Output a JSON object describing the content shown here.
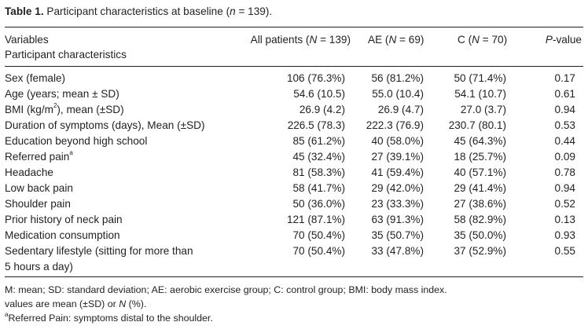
{
  "caption": {
    "label": "Table 1.",
    "text_before_n": "Participant characteristics at baseline (",
    "n_symbol": "n",
    "text_after_n": " = 139)."
  },
  "headers": {
    "variables": "Variables",
    "participant_characteristics": "Participant characteristics",
    "all_patients": {
      "prefix": "All patients (",
      "n": "N",
      "suffix": " = 139)"
    },
    "ae": {
      "prefix": "AE (",
      "n": "N",
      "suffix": " = 69)"
    },
    "c": {
      "prefix": "C (",
      "n": "N",
      "suffix": " = 70)"
    },
    "p_value": {
      "p": "P",
      "suffix": "-value"
    }
  },
  "rows": [
    {
      "variable": "Sex (female)",
      "all": "106 (76.3%)",
      "ae": "56 (81.2%)",
      "c": "50 (71.4%)",
      "p": "0.17"
    },
    {
      "variable": "Age (years; mean ± SD)",
      "all": "54.6 (10.5)",
      "ae": "55.0 (10.4)",
      "c": "54.1 (10.7)",
      "p": "0.61"
    },
    {
      "variable_pre": "BMI (kg/m",
      "variable_sup": "2",
      "variable_post": "), mean (±SD)",
      "all": "26.9 (4.2)",
      "ae": "26.9 (4.7)",
      "c": "27.0 (3.7)",
      "p": "0.94"
    },
    {
      "variable": "Duration of symptoms (days), Mean (±SD)",
      "all": "226.5 (78.3)",
      "ae": "222.3 (76.9)",
      "c": "230.7 (80.1)",
      "p": "0.53"
    },
    {
      "variable": "Education beyond high school",
      "all": "85 (61.2%)",
      "ae": "40 (58.0%)",
      "c": "45 (64.3%)",
      "p": "0.44"
    },
    {
      "variable_pre": "Referred pain",
      "variable_sup": "a",
      "variable_post": "",
      "all": "45 (32.4%)",
      "ae": "27 (39.1%)",
      "c": "18 (25.7%)",
      "p": "0.09"
    },
    {
      "variable": "Headache",
      "all": "81 (58.3%)",
      "ae": "41 (59.4%)",
      "c": "40 (57.1%)",
      "p": "0.78"
    },
    {
      "variable": "Low back pain",
      "all": "58 (41.7%)",
      "ae": "29 (42.0%)",
      "c": "29 (41.4%)",
      "p": "0.94"
    },
    {
      "variable": "Shoulder pain",
      "all": "50 (36.0%)",
      "ae": "23 (33.3%)",
      "c": "27 (38.6%)",
      "p": "0.52"
    },
    {
      "variable": "Prior history of neck pain",
      "all": "121 (87.1%)",
      "ae": "63 (91.3%)",
      "c": "58 (82.9%)",
      "p": "0.13"
    },
    {
      "variable": "Medication consumption",
      "all": "70 (50.4%)",
      "ae": "35 (50.7%)",
      "c": "35 (50.0%)",
      "p": "0.93"
    },
    {
      "variable_line1": "Sedentary lifestyle (sitting for more than",
      "variable_line2": "5 hours a day)",
      "all": "70 (50.4%)",
      "ae": "33 (47.8%)",
      "c": "37 (52.9%)",
      "p": "0.55"
    }
  ],
  "footnotes": {
    "abbreviations": "M: mean; SD: standard deviation; AE: aerobic exercise group; C: control group; BMI: body mass index.",
    "values_pre": "values are mean (±SD) or ",
    "values_n": "N",
    "values_post": " (%).",
    "ref_mark": "a",
    "referred": "Referred Pain: symptoms distal to the shoulder."
  }
}
